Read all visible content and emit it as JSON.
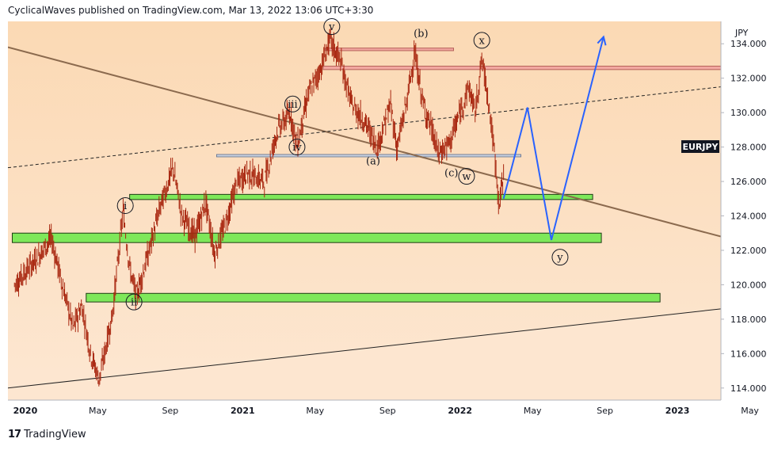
{
  "header": {
    "text": "CyclicalWaves published on TradingView.com, Mar 13, 2022 13:06 UTC+3:30"
  },
  "footer": {
    "brand": "TradingView",
    "logo_text": "17"
  },
  "colors": {
    "plot_bg_top": "#fbd9b4",
    "plot_bg_bottom": "#fde7d2",
    "candle": "#a8260f",
    "green_zone": "#7ee85a",
    "red_zone": "#f2a7a0",
    "projection": "#2962ff",
    "trendline": "#8b6a4e"
  },
  "chart_data": {
    "type": "line",
    "symbol": "EURJPY",
    "currency": "JPY",
    "y_axis_ticks": [
      "134.000",
      "132.000",
      "130.000",
      "128.000",
      "126.000",
      "124.000",
      "122.000",
      "120.000",
      "118.000",
      "116.000",
      "114.000"
    ],
    "x_axis_ticks": [
      "2020",
      "May",
      "Sep",
      "2021",
      "May",
      "Sep",
      "2022",
      "May",
      "Sep",
      "2023",
      "May"
    ],
    "ylim": [
      113.3,
      135.3
    ],
    "price_path": [
      {
        "t": 2019.95,
        "p": 120.0
      },
      {
        "t": 2020.05,
        "p": 121.5
      },
      {
        "t": 2020.12,
        "p": 122.7
      },
      {
        "t": 2020.17,
        "p": 120.0
      },
      {
        "t": 2020.22,
        "p": 117.5
      },
      {
        "t": 2020.26,
        "p": 118.8
      },
      {
        "t": 2020.3,
        "p": 116.0
      },
      {
        "t": 2020.34,
        "p": 114.5
      },
      {
        "t": 2020.4,
        "p": 118.2
      },
      {
        "t": 2020.45,
        "p": 124.3
      },
      {
        "t": 2020.48,
        "p": 121.0
      },
      {
        "t": 2020.51,
        "p": 119.3
      },
      {
        "t": 2020.57,
        "p": 122.0
      },
      {
        "t": 2020.62,
        "p": 124.5
      },
      {
        "t": 2020.68,
        "p": 126.8
      },
      {
        "t": 2020.72,
        "p": 124.0
      },
      {
        "t": 2020.78,
        "p": 122.8
      },
      {
        "t": 2020.83,
        "p": 124.8
      },
      {
        "t": 2020.87,
        "p": 121.8
      },
      {
        "t": 2020.92,
        "p": 123.5
      },
      {
        "t": 2020.97,
        "p": 125.8
      },
      {
        "t": 2021.02,
        "p": 126.5
      },
      {
        "t": 2021.1,
        "p": 126.0
      },
      {
        "t": 2021.16,
        "p": 129.0
      },
      {
        "t": 2021.22,
        "p": 130.0
      },
      {
        "t": 2021.25,
        "p": 128.0
      },
      {
        "t": 2021.3,
        "p": 131.0
      },
      {
        "t": 2021.36,
        "p": 132.6
      },
      {
        "t": 2021.4,
        "p": 134.2
      },
      {
        "t": 2021.45,
        "p": 133.0
      },
      {
        "t": 2021.5,
        "p": 130.5
      },
      {
        "t": 2021.56,
        "p": 129.5
      },
      {
        "t": 2021.62,
        "p": 128.0
      },
      {
        "t": 2021.68,
        "p": 130.5
      },
      {
        "t": 2021.71,
        "p": 127.9
      },
      {
        "t": 2021.76,
        "p": 131.0
      },
      {
        "t": 2021.79,
        "p": 133.5
      },
      {
        "t": 2021.83,
        "p": 130.5
      },
      {
        "t": 2021.87,
        "p": 129.0
      },
      {
        "t": 2021.9,
        "p": 127.6
      },
      {
        "t": 2021.95,
        "p": 128.2
      },
      {
        "t": 2022.0,
        "p": 130.0
      },
      {
        "t": 2022.04,
        "p": 131.5
      },
      {
        "t": 2022.07,
        "p": 130.0
      },
      {
        "t": 2022.1,
        "p": 133.1
      },
      {
        "t": 2022.13,
        "p": 130.8
      },
      {
        "t": 2022.16,
        "p": 127.4
      },
      {
        "t": 2022.18,
        "p": 124.5
      },
      {
        "t": 2022.2,
        "p": 126.5
      }
    ],
    "projection_path": [
      {
        "t": 2022.2,
        "p": 125.0
      },
      {
        "t": 2022.31,
        "p": 130.3
      },
      {
        "t": 2022.42,
        "p": 122.6
      },
      {
        "t": 2022.66,
        "p": 134.4
      }
    ],
    "zones": [
      {
        "kind": "support",
        "start": 2020.48,
        "end": 2022.61,
        "low": 124.95,
        "high": 125.25
      },
      {
        "kind": "support",
        "start": 2019.94,
        "end": 2022.65,
        "low": 122.45,
        "high": 123.0
      },
      {
        "kind": "support",
        "start": 2020.28,
        "end": 2022.92,
        "low": 119.0,
        "high": 119.5
      },
      {
        "kind": "resistance",
        "start": 2021.37,
        "end": 2023.2,
        "low": 132.5,
        "high": 132.7
      },
      {
        "kind": "resistance",
        "start": 2021.38,
        "end": 2021.97,
        "low": 133.6,
        "high": 133.75
      }
    ],
    "horizontal_lines": [
      {
        "start": 2020.88,
        "end": 2022.28,
        "price": 127.5
      }
    ],
    "trendlines": [
      {
        "style": "solid",
        "t1": 2019.92,
        "p1": 133.8,
        "t2": 2023.2,
        "p2": 122.8
      },
      {
        "style": "dashed",
        "t1": 2019.92,
        "p1": 126.8,
        "t2": 2023.2,
        "p2": 131.5
      },
      {
        "style": "solid",
        "t1": 2019.92,
        "p1": 114.0,
        "t2": 2023.2,
        "p2": 118.6
      }
    ],
    "wave_labels": [
      {
        "text": "i",
        "t": 2020.46,
        "p": 124.6,
        "circled": true
      },
      {
        "text": "ii",
        "t": 2020.5,
        "p": 119.0,
        "circled": true
      },
      {
        "text": "iii",
        "t": 2021.23,
        "p": 130.5,
        "circled": true
      },
      {
        "text": "iv",
        "t": 2021.25,
        "p": 128.0,
        "circled": true
      },
      {
        "text": "v",
        "t": 2021.41,
        "p": 135.0,
        "circled": true
      },
      {
        "text": "(a)",
        "t": 2021.6,
        "p": 127.2,
        "circled": false
      },
      {
        "text": "(b)",
        "t": 2021.82,
        "p": 134.6,
        "circled": false
      },
      {
        "text": "x",
        "t": 2022.1,
        "p": 134.2,
        "circled": true
      },
      {
        "text": "(c)",
        "t": 2021.96,
        "p": 126.5,
        "circled": false
      },
      {
        "text": "w",
        "t": 2022.03,
        "p": 126.3,
        "circled": true
      },
      {
        "text": "y",
        "t": 2022.46,
        "p": 121.6,
        "circled": true
      }
    ],
    "price_label": "EURJPY",
    "grid": false,
    "legend": "none"
  }
}
